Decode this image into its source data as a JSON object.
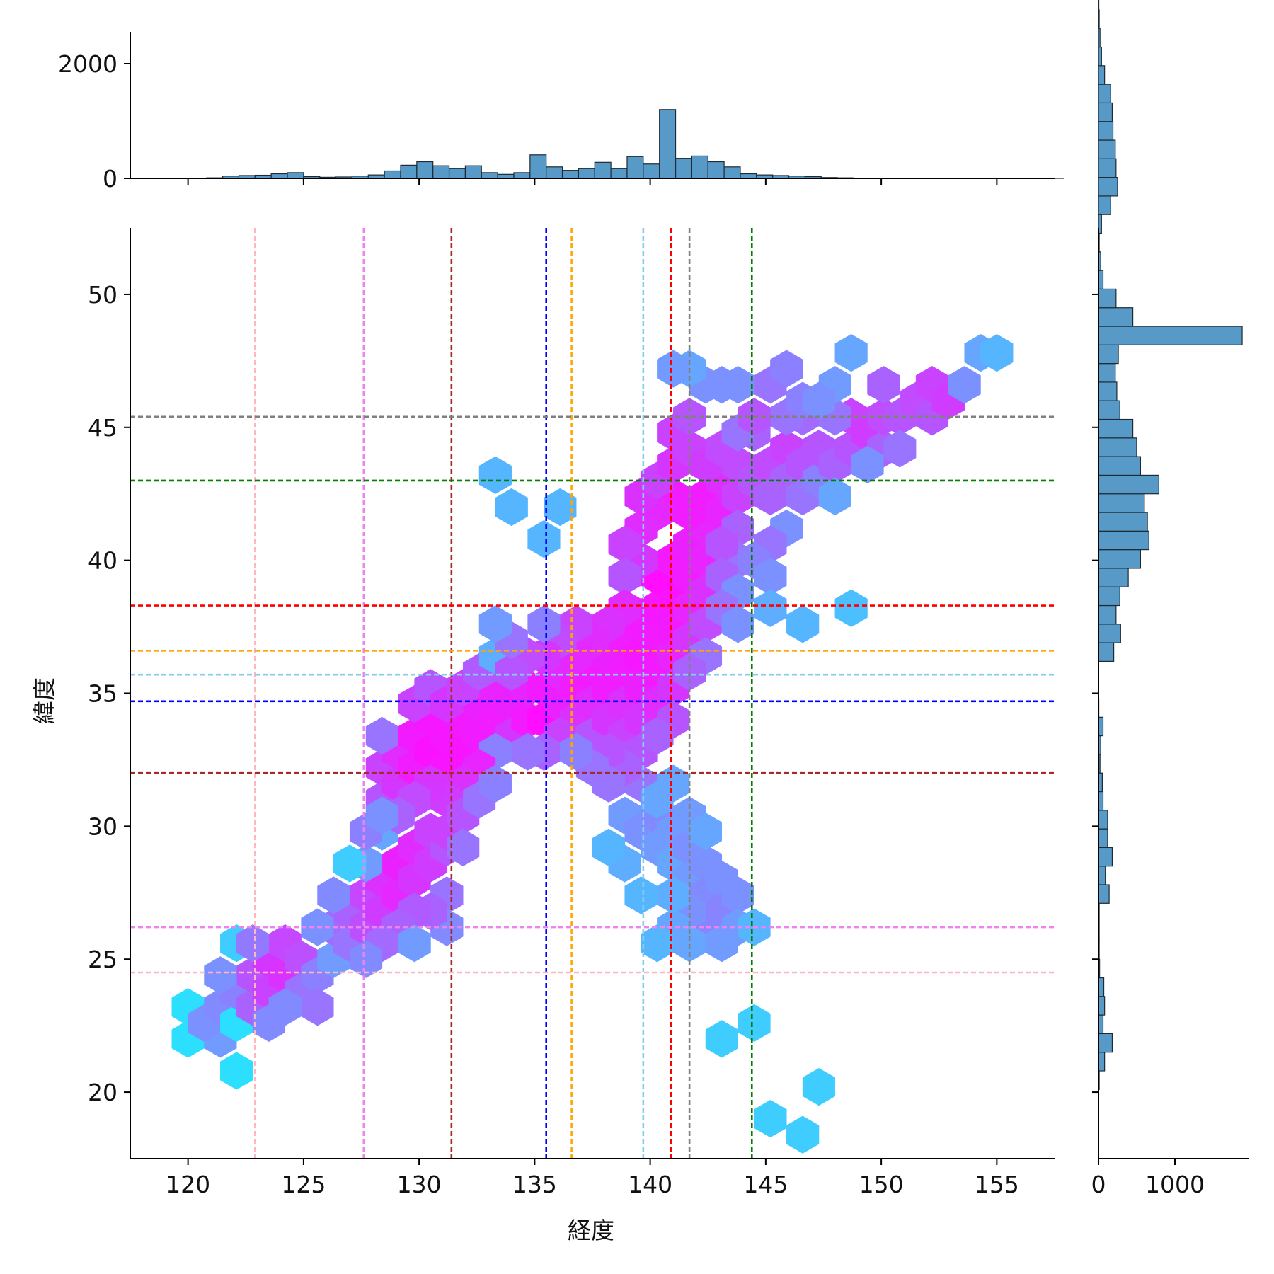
{
  "chart_data": {
    "type": "hexbin",
    "title": "",
    "xlabel": "経度",
    "ylabel": "緯度",
    "xlim": [
      117.5,
      157.5
    ],
    "ylim": [
      17.5,
      52.5
    ],
    "x_ticks": [
      120,
      125,
      130,
      135,
      140,
      145,
      150,
      155
    ],
    "y_ticks": [
      20,
      25,
      30,
      35,
      40,
      45,
      50
    ],
    "top_hist_ticks": [
      0,
      2000
    ],
    "right_hist_ticks": [
      0,
      1000
    ],
    "colormap": "cool",
    "hex_grid": {
      "dx": 1.4,
      "dy_row": 1.15,
      "x0": 120.0,
      "y0": 22.0,
      "legend_note": "counts per hex cell; higher density shown toward magenta"
    },
    "hexbins": [
      [
        120.0,
        22.0,
        1
      ],
      [
        121.4,
        22.0,
        8
      ],
      [
        120.0,
        23.2,
        1
      ],
      [
        120.7,
        22.6,
        10
      ],
      [
        121.4,
        23.2,
        12
      ],
      [
        122.1,
        22.6,
        1
      ],
      [
        122.1,
        23.8,
        15
      ],
      [
        122.8,
        23.2,
        30
      ],
      [
        122.8,
        24.4,
        40
      ],
      [
        123.5,
        23.8,
        60
      ],
      [
        123.5,
        25.0,
        80
      ],
      [
        124.2,
        24.4,
        90
      ],
      [
        124.2,
        25.6,
        55
      ],
      [
        124.9,
        25.0,
        45
      ],
      [
        124.9,
        23.8,
        20
      ],
      [
        125.6,
        24.4,
        15
      ],
      [
        125.6,
        23.2,
        20
      ],
      [
        124.2,
        23.2,
        12
      ],
      [
        123.5,
        22.6,
        12
      ],
      [
        122.1,
        25.6,
        2
      ],
      [
        122.8,
        25.6,
        18
      ],
      [
        121.4,
        24.4,
        10
      ],
      [
        122.1,
        20.8,
        1
      ],
      [
        126.3,
        25.0,
        8
      ],
      [
        126.3,
        26.2,
        25
      ],
      [
        127.0,
        25.6,
        20
      ],
      [
        127.0,
        26.8,
        30
      ],
      [
        127.7,
        26.2,
        45
      ],
      [
        127.7,
        27.4,
        55
      ],
      [
        128.4,
        26.8,
        70
      ],
      [
        128.4,
        28.0,
        90
      ],
      [
        129.1,
        27.4,
        110
      ],
      [
        129.1,
        28.6,
        130
      ],
      [
        129.8,
        28.0,
        80
      ],
      [
        129.8,
        29.2,
        100
      ],
      [
        130.5,
        28.6,
        70
      ],
      [
        130.5,
        29.8,
        60
      ],
      [
        131.2,
        29.2,
        40
      ],
      [
        131.2,
        27.4,
        20
      ],
      [
        131.2,
        26.2,
        12
      ],
      [
        130.5,
        26.8,
        30
      ],
      [
        129.8,
        26.8,
        35
      ],
      [
        129.1,
        26.2,
        30
      ],
      [
        128.4,
        25.6,
        25
      ],
      [
        127.7,
        25.0,
        12
      ],
      [
        129.8,
        25.6,
        8
      ],
      [
        125.6,
        26.2,
        10
      ],
      [
        126.3,
        27.4,
        12
      ],
      [
        127.7,
        28.6,
        8
      ],
      [
        128.4,
        29.8,
        6
      ],
      [
        127.0,
        28.6,
        2
      ],
      [
        127.7,
        29.8,
        15
      ],
      [
        128.4,
        31.0,
        40
      ],
      [
        128.4,
        32.2,
        60
      ],
      [
        129.1,
        31.6,
        80
      ],
      [
        129.1,
        32.8,
        100
      ],
      [
        129.8,
        32.2,
        140
      ],
      [
        129.8,
        33.4,
        150
      ],
      [
        130.5,
        32.8,
        180
      ],
      [
        130.5,
        34.0,
        160
      ],
      [
        131.2,
        32.2,
        170
      ],
      [
        131.2,
        33.4,
        160
      ],
      [
        131.9,
        32.8,
        170
      ],
      [
        131.9,
        34.0,
        150
      ],
      [
        132.6,
        33.4,
        150
      ],
      [
        132.6,
        34.6,
        130
      ],
      [
        133.3,
        34.0,
        140
      ],
      [
        133.3,
        35.2,
        120
      ],
      [
        134.0,
        34.6,
        130
      ],
      [
        134.0,
        33.4,
        80
      ],
      [
        134.7,
        34.0,
        150
      ],
      [
        134.7,
        35.2,
        120
      ],
      [
        135.4,
        34.0,
        200
      ],
      [
        135.4,
        35.2,
        150
      ],
      [
        136.1,
        34.6,
        130
      ],
      [
        136.1,
        35.8,
        110
      ],
      [
        136.8,
        35.2,
        140
      ],
      [
        136.8,
        34.0,
        90
      ],
      [
        136.1,
        33.4,
        60
      ],
      [
        135.4,
        32.8,
        30
      ],
      [
        134.7,
        32.8,
        20
      ],
      [
        133.3,
        32.8,
        15
      ],
      [
        132.6,
        32.2,
        120
      ],
      [
        131.9,
        31.6,
        90
      ],
      [
        131.2,
        31.0,
        70
      ],
      [
        130.5,
        31.6,
        80
      ],
      [
        129.8,
        31.0,
        50
      ],
      [
        131.2,
        29.8,
        60
      ],
      [
        131.9,
        30.4,
        40
      ],
      [
        132.6,
        31.0,
        20
      ],
      [
        133.3,
        31.6,
        15
      ],
      [
        128.4,
        33.4,
        20
      ],
      [
        129.1,
        30.4,
        30
      ],
      [
        129.8,
        34.6,
        60
      ],
      [
        130.5,
        35.2,
        40
      ],
      [
        131.2,
        34.6,
        80
      ],
      [
        131.9,
        35.2,
        60
      ],
      [
        132.6,
        35.8,
        35
      ],
      [
        133.3,
        36.4,
        5
      ],
      [
        131.9,
        29.2,
        20
      ],
      [
        128.4,
        30.4,
        10
      ],
      [
        137.5,
        35.8,
        150
      ],
      [
        137.5,
        34.6,
        100
      ],
      [
        137.5,
        33.4,
        40
      ],
      [
        138.2,
        35.2,
        140
      ],
      [
        138.2,
        36.4,
        130
      ],
      [
        138.2,
        34.0,
        80
      ],
      [
        138.9,
        35.8,
        140
      ],
      [
        138.9,
        34.6,
        90
      ],
      [
        138.9,
        33.4,
        60
      ],
      [
        138.9,
        37.0,
        140
      ],
      [
        139.6,
        36.4,
        160
      ],
      [
        139.6,
        35.2,
        130
      ],
      [
        139.6,
        34.0,
        80
      ],
      [
        139.6,
        32.8,
        40
      ],
      [
        139.6,
        37.6,
        150
      ],
      [
        140.3,
        37.0,
        150
      ],
      [
        140.3,
        35.8,
        150
      ],
      [
        140.3,
        34.6,
        100
      ],
      [
        140.3,
        38.2,
        160
      ],
      [
        141.0,
        37.6,
        150
      ],
      [
        141.0,
        36.4,
        120
      ],
      [
        141.0,
        35.2,
        80
      ],
      [
        141.0,
        38.8,
        170
      ],
      [
        140.3,
        39.4,
        200
      ],
      [
        141.0,
        40.0,
        150
      ],
      [
        141.7,
        39.4,
        140
      ],
      [
        141.7,
        38.2,
        120
      ],
      [
        141.7,
        37.0,
        80
      ],
      [
        141.7,
        40.6,
        130
      ],
      [
        142.4,
        40.0,
        120
      ],
      [
        142.4,
        38.8,
        90
      ],
      [
        142.4,
        37.6,
        50
      ],
      [
        142.4,
        41.2,
        110
      ],
      [
        141.7,
        41.8,
        140
      ],
      [
        142.4,
        42.4,
        140
      ],
      [
        143.1,
        41.8,
        120
      ],
      [
        143.1,
        43.0,
        100
      ],
      [
        141.0,
        42.4,
        140
      ],
      [
        140.3,
        41.8,
        110
      ],
      [
        139.6,
        42.4,
        90
      ],
      [
        139.6,
        41.2,
        100
      ],
      [
        139.6,
        40.0,
        80
      ],
      [
        138.9,
        40.6,
        60
      ],
      [
        138.9,
        39.4,
        40
      ],
      [
        138.9,
        38.2,
        100
      ],
      [
        138.2,
        37.6,
        90
      ],
      [
        137.5,
        37.0,
        100
      ],
      [
        136.8,
        36.4,
        110
      ],
      [
        136.8,
        37.6,
        60
      ],
      [
        136.1,
        37.0,
        50
      ],
      [
        135.4,
        36.4,
        80
      ],
      [
        134.7,
        36.4,
        50
      ],
      [
        135.4,
        37.6,
        15
      ],
      [
        134.0,
        35.8,
        40
      ],
      [
        134.0,
        37.0,
        20
      ],
      [
        133.3,
        37.6,
        8
      ],
      [
        140.3,
        43.0,
        60
      ],
      [
        141.0,
        43.6,
        80
      ],
      [
        141.7,
        44.2,
        60
      ],
      [
        142.4,
        43.6,
        70
      ],
      [
        143.1,
        44.2,
        50
      ],
      [
        141.0,
        44.8,
        60
      ],
      [
        141.7,
        45.4,
        40
      ],
      [
        143.8,
        43.6,
        50
      ],
      [
        143.8,
        42.4,
        60
      ],
      [
        143.8,
        41.2,
        30
      ],
      [
        143.8,
        40.0,
        20
      ],
      [
        143.1,
        40.6,
        40
      ],
      [
        143.1,
        39.4,
        30
      ],
      [
        143.8,
        38.8,
        10
      ],
      [
        143.1,
        38.2,
        20
      ],
      [
        143.8,
        37.6,
        10
      ],
      [
        142.4,
        36.4,
        20
      ],
      [
        141.7,
        35.8,
        30
      ],
      [
        141.0,
        34.0,
        40
      ],
      [
        140.3,
        33.4,
        30
      ],
      [
        139.6,
        31.6,
        20
      ],
      [
        138.9,
        32.2,
        30
      ],
      [
        138.2,
        32.8,
        40
      ],
      [
        138.2,
        31.6,
        20
      ],
      [
        137.5,
        32.2,
        20
      ],
      [
        136.8,
        32.8,
        15
      ],
      [
        138.9,
        30.4,
        8
      ],
      [
        139.6,
        29.8,
        10
      ],
      [
        140.3,
        30.4,
        12
      ],
      [
        140.3,
        29.2,
        8
      ],
      [
        141.0,
        29.8,
        8
      ],
      [
        141.0,
        28.6,
        6
      ],
      [
        141.7,
        29.2,
        10
      ],
      [
        141.7,
        28.0,
        8
      ],
      [
        142.4,
        28.6,
        10
      ],
      [
        142.4,
        27.4,
        12
      ],
      [
        143.1,
        28.0,
        10
      ],
      [
        143.1,
        26.8,
        14
      ],
      [
        143.8,
        27.4,
        10
      ],
      [
        143.8,
        26.2,
        8
      ],
      [
        142.4,
        26.2,
        14
      ],
      [
        141.7,
        26.8,
        10
      ],
      [
        141.0,
        26.2,
        6
      ],
      [
        140.3,
        25.6,
        4
      ],
      [
        141.7,
        25.6,
        6
      ],
      [
        143.1,
        25.6,
        8
      ],
      [
        144.5,
        26.2,
        4
      ],
      [
        139.6,
        27.4,
        4
      ],
      [
        138.9,
        28.6,
        5
      ],
      [
        138.2,
        29.2,
        4
      ],
      [
        140.3,
        31.0,
        6
      ],
      [
        141.0,
        31.6,
        6
      ],
      [
        141.7,
        30.4,
        8
      ],
      [
        142.4,
        29.8,
        6
      ],
      [
        141.0,
        27.4,
        5
      ],
      [
        144.5,
        43.0,
        40
      ],
      [
        145.2,
        43.6,
        50
      ],
      [
        145.9,
        44.2,
        60
      ],
      [
        145.2,
        42.4,
        30
      ],
      [
        145.9,
        43.0,
        30
      ],
      [
        146.6,
        43.6,
        40
      ],
      [
        146.6,
        42.4,
        20
      ],
      [
        147.3,
        43.0,
        15
      ],
      [
        147.3,
        44.2,
        40
      ],
      [
        148.0,
        43.6,
        30
      ],
      [
        148.7,
        44.2,
        40
      ],
      [
        148.7,
        45.4,
        60
      ],
      [
        149.4,
        44.8,
        70
      ],
      [
        150.1,
        44.2,
        30
      ],
      [
        150.1,
        45.4,
        50
      ],
      [
        150.8,
        45.4,
        40
      ],
      [
        150.8,
        44.2,
        20
      ],
      [
        149.4,
        43.6,
        10
      ],
      [
        151.5,
        46.0,
        50
      ],
      [
        152.2,
        45.4,
        40
      ],
      [
        152.2,
        46.6,
        60
      ],
      [
        152.9,
        46.0,
        70
      ],
      [
        150.1,
        46.6,
        30
      ],
      [
        148.0,
        45.4,
        20
      ],
      [
        146.6,
        45.4,
        25
      ],
      [
        145.9,
        45.4,
        20
      ],
      [
        144.5,
        44.8,
        30
      ],
      [
        143.8,
        44.8,
        20
      ],
      [
        145.2,
        46.6,
        20
      ],
      [
        145.9,
        47.2,
        15
      ],
      [
        143.8,
        46.6,
        10
      ],
      [
        143.1,
        46.6,
        10
      ],
      [
        142.4,
        46.6,
        10
      ],
      [
        141.7,
        47.2,
        6
      ],
      [
        141.0,
        47.2,
        8
      ],
      [
        144.5,
        45.4,
        40
      ],
      [
        146.6,
        46.0,
        15
      ],
      [
        148.0,
        46.6,
        8
      ],
      [
        148.7,
        47.8,
        6
      ],
      [
        153.6,
        46.6,
        10
      ],
      [
        154.3,
        47.8,
        6
      ],
      [
        155.0,
        47.8,
        4
      ],
      [
        147.3,
        46.0,
        10
      ],
      [
        148.0,
        42.4,
        6
      ],
      [
        145.9,
        41.2,
        10
      ],
      [
        145.2,
        40.6,
        20
      ],
      [
        144.5,
        40.0,
        15
      ],
      [
        145.2,
        39.4,
        10
      ],
      [
        145.2,
        38.2,
        5
      ],
      [
        146.6,
        37.6,
        4
      ],
      [
        148.7,
        38.2,
        3
      ],
      [
        133.3,
        43.2,
        4
      ],
      [
        134.0,
        42.0,
        4
      ],
      [
        136.1,
        42.0,
        4
      ],
      [
        135.4,
        40.8,
        4
      ],
      [
        143.1,
        22.0,
        2
      ],
      [
        144.5,
        22.6,
        2
      ],
      [
        147.3,
        20.2,
        2
      ],
      [
        145.2,
        19.0,
        2
      ],
      [
        146.6,
        18.4,
        2
      ]
    ],
    "vlines": [
      {
        "x": 122.9,
        "color": "#ffb6c1"
      },
      {
        "x": 127.6,
        "color": "#ee82ee"
      },
      {
        "x": 131.4,
        "color": "#a52a2a"
      },
      {
        "x": 135.5,
        "color": "#0000ff"
      },
      {
        "x": 136.6,
        "color": "#ffa500"
      },
      {
        "x": 139.7,
        "color": "#87ceeb"
      },
      {
        "x": 140.9,
        "color": "#ff0000"
      },
      {
        "x": 141.7,
        "color": "#808080"
      },
      {
        "x": 144.4,
        "color": "#008000"
      }
    ],
    "hlines": [
      {
        "y": 45.4,
        "color": "#808080"
      },
      {
        "y": 43.0,
        "color": "#008000"
      },
      {
        "y": 38.3,
        "color": "#ff0000"
      },
      {
        "y": 36.6,
        "color": "#ffa500"
      },
      {
        "y": 35.7,
        "color": "#87ceeb"
      },
      {
        "y": 34.7,
        "color": "#0000ff"
      },
      {
        "y": 32.0,
        "color": "#a52a2a"
      },
      {
        "y": 26.2,
        "color": "#ee82ee"
      },
      {
        "y": 24.5,
        "color": "#ffb6c1"
      }
    ],
    "top_hist": {
      "bin_start": 118.0,
      "bin_width": 0.7,
      "counts": [
        0,
        0,
        0,
        0,
        10,
        40,
        50,
        55,
        80,
        100,
        30,
        20,
        25,
        40,
        60,
        130,
        230,
        290,
        220,
        170,
        220,
        100,
        70,
        100,
        410,
        200,
        140,
        170,
        280,
        170,
        380,
        250,
        1200,
        350,
        390,
        290,
        200,
        80,
        60,
        50,
        40,
        30,
        15,
        10,
        5,
        5,
        4,
        5,
        3,
        2,
        2,
        2,
        2,
        1,
        1,
        1,
        1
      ]
    },
    "right_hist": {
      "bin_start": 18.0,
      "bin_width": 0.7,
      "counts": [
        3,
        3,
        3,
        10,
        80,
        180,
        60,
        80,
        70,
        15,
        10,
        10,
        10,
        140,
        90,
        180,
        120,
        120,
        60,
        50,
        20,
        30,
        60,
        5,
        2,
        3,
        200,
        290,
        230,
        280,
        390,
        550,
        660,
        640,
        600,
        790,
        550,
        500,
        450,
        280,
        240,
        220,
        260,
        1880,
        450,
        230,
        60,
        30,
        10,
        40,
        160,
        250,
        230,
        220,
        190,
        180,
        160,
        80,
        40,
        20,
        10,
        5,
        3
      ]
    },
    "hist_color": "#5799c7"
  }
}
